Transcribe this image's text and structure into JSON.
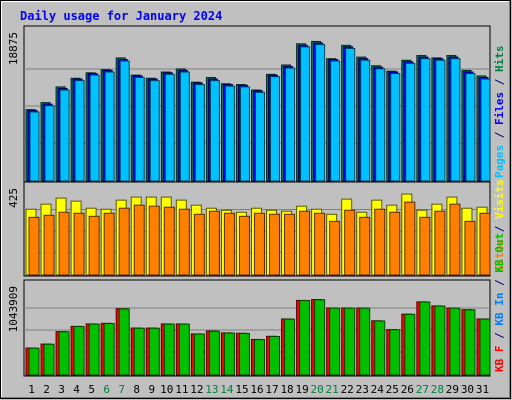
{
  "chart_data": {
    "type": "bar",
    "title": "Daily usage for January 2024",
    "x": [
      "1",
      "2",
      "3",
      "4",
      "5",
      "6",
      "7",
      "8",
      "9",
      "10",
      "11",
      "12",
      "13",
      "14",
      "15",
      "16",
      "17",
      "18",
      "19",
      "20",
      "21",
      "22",
      "23",
      "24",
      "25",
      "26",
      "27",
      "28",
      "29",
      "30",
      "31"
    ],
    "weekend_days": [
      "6",
      "7",
      "13",
      "14",
      "20",
      "21",
      "27",
      "28"
    ],
    "panels": [
      {
        "id": "hits-files-pages",
        "max_label": "18875",
        "ymax": 18875,
        "right_label": [
          {
            "text": "Pages",
            "color": "#00c0ff"
          },
          {
            "text": " / ",
            "color": "#000080"
          },
          {
            "text": "Files",
            "color": "#0000ff"
          },
          {
            "text": " / ",
            "color": "#000080"
          },
          {
            "text": "Hits",
            "color": "#008040"
          }
        ],
        "series": [
          {
            "name": "Hits",
            "color": "#00805c",
            "values": [
              9100,
              10000,
              12000,
              13100,
              13800,
              14200,
              15700,
              13500,
              13100,
              13900,
              14300,
              12600,
              13200,
              12400,
              12300,
              11600,
              13600,
              14800,
              17500,
              17800,
              15600,
              17300,
              15800,
              14700,
              14000,
              15400,
              16000,
              15700,
              16000,
              14100,
              13400
            ]
          },
          {
            "name": "Files",
            "color": "#0000ff",
            "values": [
              9000,
              9800,
              11800,
              13000,
              13700,
              14100,
              15500,
              13400,
              13000,
              13800,
              14100,
              12500,
              13000,
              12300,
              12200,
              11500,
              13500,
              14600,
              17300,
              17600,
              15500,
              17100,
              15600,
              14500,
              13900,
              15200,
              15800,
              15600,
              15800,
              13900,
              13200
            ]
          },
          {
            "name": "Pages",
            "color": "#00c0ff",
            "values": [
              8800,
              9600,
              11600,
              12800,
              13500,
              13900,
              15300,
              13200,
              12800,
              13600,
              13900,
              12300,
              12800,
              12100,
              12000,
              11300,
              13300,
              14400,
              17100,
              17400,
              15300,
              16900,
              15400,
              14300,
              13700,
              15000,
              15600,
              15400,
              15600,
              13700,
              13000
            ]
          }
        ]
      },
      {
        "id": "visits-sites",
        "max_label": "425",
        "ymax": 425,
        "right_label": [
          {
            "text": "Sites",
            "color": "#ff8000"
          },
          {
            "text": " / ",
            "color": "#000080"
          },
          {
            "text": "Visits",
            "color": "#ffff00"
          }
        ],
        "series": [
          {
            "name": "Visits",
            "color": "#ffff00",
            "values": [
              325,
              350,
              380,
              365,
              330,
              325,
              370,
              385,
              385,
              385,
              370,
              345,
              330,
              320,
              310,
              330,
              320,
              315,
              340,
              325,
              300,
              375,
              310,
              370,
              345,
              400,
              320,
              350,
              385,
              330,
              335
            ]
          },
          {
            "name": "Sites",
            "color": "#ff8000",
            "values": [
              285,
              295,
              310,
              305,
              290,
              305,
              330,
              345,
              340,
              335,
              325,
              300,
              315,
              305,
              290,
              305,
              300,
              300,
              315,
              305,
              265,
              320,
              285,
              325,
              310,
              360,
              285,
              315,
              350,
              265,
              305
            ]
          }
        ]
      },
      {
        "id": "kbytes",
        "max_label": "1043909",
        "ymax": 1043909,
        "right_label": [
          {
            "text": "KB F",
            "color": "#ff0000"
          },
          {
            "text": " / ",
            "color": "#000080"
          },
          {
            "text": "KB In",
            "color": "#0080ff"
          },
          {
            "text": " / ",
            "color": "#000080"
          },
          {
            "text": "KB Out",
            "color": "#00c000"
          }
        ],
        "series": [
          {
            "name": "KB F",
            "color": "#ff0000",
            "values": [
              320000,
              367000,
              515000,
              577000,
              606000,
              613000,
              786000,
              557000,
              557000,
              606000,
              606000,
              488000,
              521000,
              500000,
              495000,
              422000,
              459000,
              665000,
              885000,
              895000,
              795000,
              795000,
              795000,
              643000,
              539000,
              722000,
              868000,
              820000,
              795000,
              775000,
              665000
            ]
          },
          {
            "name": "KB Out",
            "color": "#00c000",
            "values": [
              318000,
              365000,
              513000,
              575000,
              604000,
              611000,
              784000,
              555000,
              555000,
              604000,
              604000,
              486000,
              519000,
              498000,
              493000,
              420000,
              457000,
              663000,
              883000,
              893000,
              793000,
              793000,
              793000,
              641000,
              537000,
              720000,
              866000,
              818000,
              793000,
              773000,
              663000
            ]
          }
        ]
      }
    ]
  }
}
